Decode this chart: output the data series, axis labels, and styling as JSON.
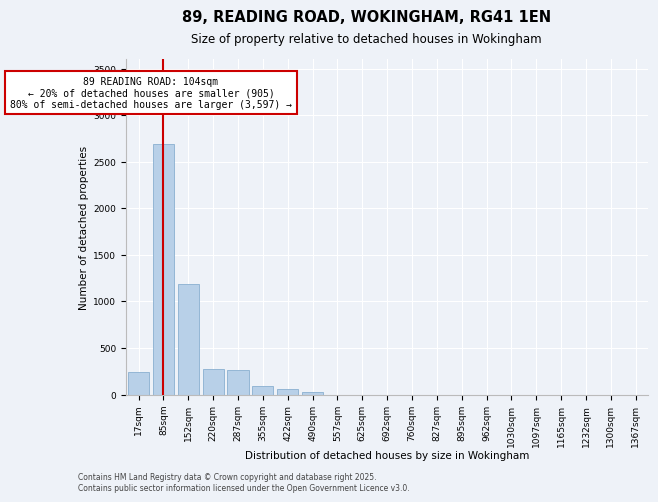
{
  "title": "89, READING ROAD, WOKINGHAM, RG41 1EN",
  "subtitle": "Size of property relative to detached houses in Wokingham",
  "xlabel": "Distribution of detached houses by size in Wokingham",
  "ylabel": "Number of detached properties",
  "categories": [
    "17sqm",
    "85sqm",
    "152sqm",
    "220sqm",
    "287sqm",
    "355sqm",
    "422sqm",
    "490sqm",
    "557sqm",
    "625sqm",
    "692sqm",
    "760sqm",
    "827sqm",
    "895sqm",
    "962sqm",
    "1030sqm",
    "1097sqm",
    "1165sqm",
    "1232sqm",
    "1300sqm",
    "1367sqm"
  ],
  "values": [
    240,
    2690,
    1185,
    270,
    265,
    90,
    60,
    30,
    0,
    0,
    0,
    0,
    0,
    0,
    0,
    0,
    0,
    0,
    0,
    0,
    0
  ],
  "bar_color": "#b8d0e8",
  "bar_edge_color": "#8ab0d0",
  "vline_x_index": 1,
  "vline_color": "#cc0000",
  "annotation_line1": "89 READING ROAD: 104sqm",
  "annotation_line2": "← 20% of detached houses are smaller (905)",
  "annotation_line3": "80% of semi-detached houses are larger (3,597) →",
  "annotation_box_color": "#ffffff",
  "annotation_box_edge_color": "#cc0000",
  "ylim": [
    0,
    3600
  ],
  "yticks": [
    0,
    500,
    1000,
    1500,
    2000,
    2500,
    3000,
    3500
  ],
  "background_color": "#eef2f8",
  "grid_color": "#ffffff",
  "footer_line1": "Contains HM Land Registry data © Crown copyright and database right 2025.",
  "footer_line2": "Contains public sector information licensed under the Open Government Licence v3.0.",
  "title_fontsize": 10.5,
  "subtitle_fontsize": 8.5,
  "axis_label_fontsize": 7.5,
  "tick_fontsize": 6.5,
  "annotation_fontsize": 7,
  "footer_fontsize": 5.5
}
